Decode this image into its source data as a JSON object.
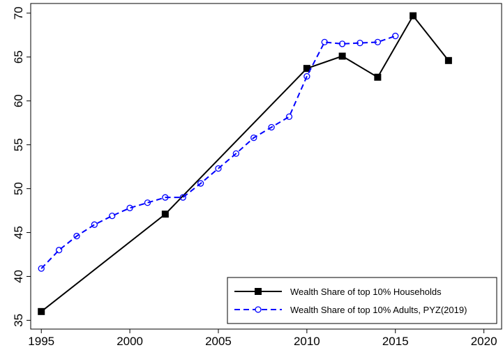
{
  "chart_data": {
    "type": "line",
    "xlim": [
      1994.4,
      2021
    ],
    "ylim": [
      34,
      71.1
    ],
    "xticks": [
      1995,
      2000,
      2005,
      2010,
      2015,
      2020
    ],
    "yticks": [
      35,
      40,
      45,
      50,
      55,
      60,
      65,
      70
    ],
    "legend": "lower right",
    "series": [
      {
        "name": "Wealth Share of top 10% Households",
        "color": "#000000",
        "style": "solid",
        "marker": "square",
        "x": [
          1995,
          2002,
          2010,
          2012,
          2014,
          2016,
          2018
        ],
        "values": [
          36,
          47.1,
          63.7,
          65.1,
          62.7,
          69.7,
          64.6
        ]
      },
      {
        "name": "Wealth Share of top 10% Adults, PYZ(2019)",
        "color": "#0000ff",
        "style": "dashed",
        "marker": "circle",
        "x": [
          1995,
          1996,
          1997,
          1998,
          1999,
          2000,
          2001,
          2002,
          2003,
          2004,
          2005,
          2006,
          2007,
          2008,
          2009,
          2010,
          2011,
          2012,
          2013,
          2014,
          2015
        ],
        "values": [
          40.9,
          43.0,
          44.6,
          45.9,
          46.9,
          47.8,
          48.4,
          49.0,
          49.0,
          50.6,
          52.3,
          54.0,
          55.8,
          57.0,
          58.2,
          62.8,
          66.7,
          66.5,
          66.6,
          66.7,
          67.4
        ]
      }
    ]
  }
}
